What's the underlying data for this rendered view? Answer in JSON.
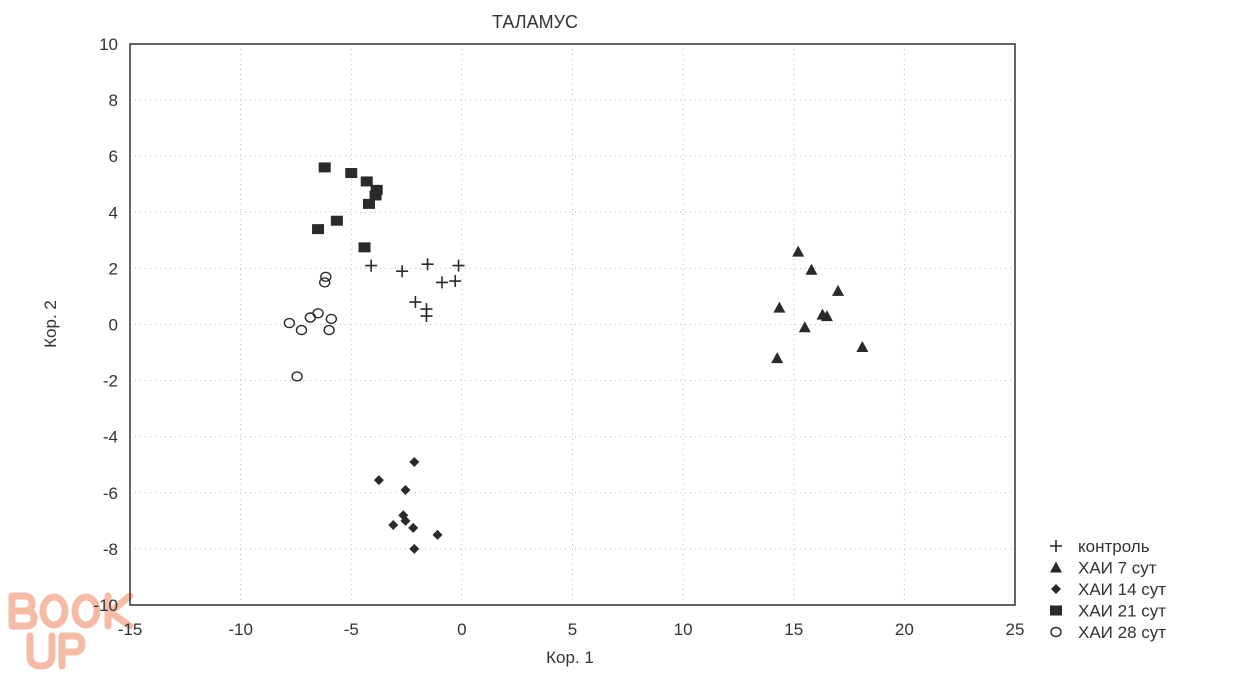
{
  "chart_data": {
    "type": "scatter",
    "title": "ТАЛАМУС",
    "xlabel": "Кор. 1",
    "ylabel": "Кор. 2",
    "xlim": [
      -15,
      25
    ],
    "ylim": [
      -10,
      10
    ],
    "xticks": [
      -15,
      -10,
      -5,
      0,
      5,
      10,
      15,
      20,
      25
    ],
    "yticks": [
      -10,
      -8,
      -6,
      -4,
      -2,
      0,
      2,
      4,
      6,
      8,
      10
    ],
    "grid": true,
    "legend_position": "bottom-right",
    "series": [
      {
        "name": "контроль",
        "marker": "plus",
        "points": [
          [
            -4.1,
            2.1
          ],
          [
            -2.7,
            1.9
          ],
          [
            -1.55,
            2.15
          ],
          [
            -0.15,
            2.1
          ],
          [
            -0.9,
            1.5
          ],
          [
            -0.3,
            1.55
          ],
          [
            -2.1,
            0.8
          ],
          [
            -1.6,
            0.55
          ],
          [
            -1.6,
            0.3
          ]
        ]
      },
      {
        "name": "ХАИ 7 сут",
        "marker": "triangle",
        "points": [
          [
            15.2,
            2.6
          ],
          [
            15.8,
            1.95
          ],
          [
            17.0,
            1.2
          ],
          [
            14.35,
            0.6
          ],
          [
            16.3,
            0.35
          ],
          [
            16.5,
            0.3
          ],
          [
            15.5,
            -0.1
          ],
          [
            18.1,
            -0.8
          ],
          [
            14.25,
            -1.2
          ]
        ]
      },
      {
        "name": "ХАИ 14 сут",
        "marker": "diamond",
        "points": [
          [
            -2.15,
            -4.9
          ],
          [
            -3.75,
            -5.55
          ],
          [
            -2.55,
            -5.9
          ],
          [
            -2.65,
            -6.8
          ],
          [
            -2.55,
            -7.0
          ],
          [
            -3.1,
            -7.15
          ],
          [
            -2.2,
            -7.25
          ],
          [
            -1.1,
            -7.5
          ],
          [
            -2.15,
            -8.0
          ]
        ]
      },
      {
        "name": "ХАИ 21 сут",
        "marker": "square",
        "points": [
          [
            -6.2,
            5.6
          ],
          [
            -5.0,
            5.4
          ],
          [
            -4.3,
            5.1
          ],
          [
            -3.85,
            4.8
          ],
          [
            -3.9,
            4.6
          ],
          [
            -4.2,
            4.3
          ],
          [
            -5.65,
            3.7
          ],
          [
            -6.5,
            3.4
          ],
          [
            -4.4,
            2.75
          ]
        ]
      },
      {
        "name": "ХАИ 28 сут",
        "marker": "circle",
        "points": [
          [
            -6.15,
            1.7
          ],
          [
            -6.2,
            1.5
          ],
          [
            -7.8,
            0.05
          ],
          [
            -7.25,
            -0.2
          ],
          [
            -6.85,
            0.25
          ],
          [
            -6.5,
            0.4
          ],
          [
            -5.9,
            0.2
          ],
          [
            -6.0,
            -0.2
          ],
          [
            -7.45,
            -1.85
          ]
        ]
      }
    ]
  },
  "watermark": "BOOK UP",
  "colors": {
    "marker": "#2a2a2a",
    "watermark": "#f4a58a"
  }
}
